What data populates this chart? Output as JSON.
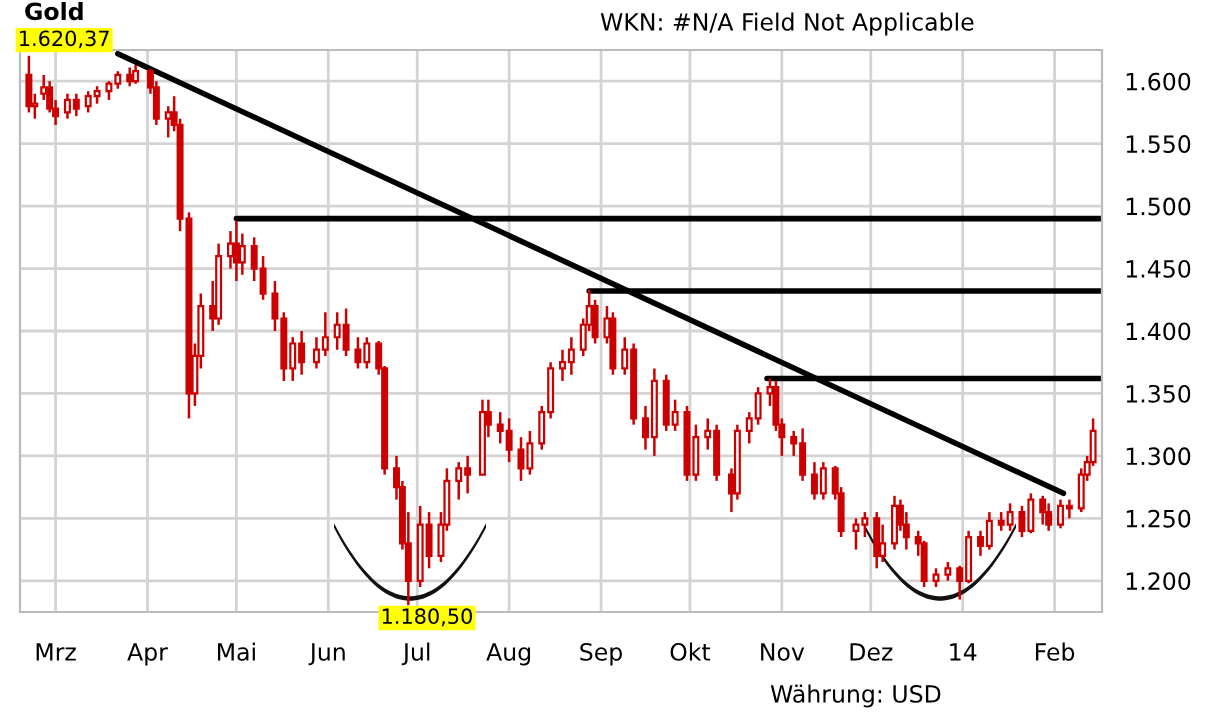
{
  "chart_data": {
    "type": "candlestick",
    "title": "Gold",
    "annotations": [
      {
        "text": "1.620,37",
        "x": "2013-02-20",
        "y": 1620.37
      },
      {
        "text": "1.180,50",
        "x": "2013-06-28",
        "y": 1180.5
      },
      "WKN: #N/A Field Not Applicable",
      "Währung: USD"
    ],
    "x": [
      "2013-02-20",
      "2013-02-22",
      "2013-02-25",
      "2013-02-27",
      "2013-03-01",
      "2013-03-05",
      "2013-03-08",
      "2013-03-12",
      "2013-03-15",
      "2013-03-19",
      "2013-03-22",
      "2013-03-26",
      "2013-03-28",
      "2013-04-02",
      "2013-04-04",
      "2013-04-08",
      "2013-04-10",
      "2013-04-12",
      "2013-04-15",
      "2013-04-17",
      "2013-04-19",
      "2013-04-23",
      "2013-04-25",
      "2013-04-29",
      "2013-05-01",
      "2013-05-03",
      "2013-05-07",
      "2013-05-10",
      "2013-05-14",
      "2013-05-17",
      "2013-05-20",
      "2013-05-23",
      "2013-05-28",
      "2013-05-31",
      "2013-06-04",
      "2013-06-07",
      "2013-06-11",
      "2013-06-14",
      "2013-06-18",
      "2013-06-20",
      "2013-06-24",
      "2013-06-26",
      "2013-06-28",
      "2013-07-02",
      "2013-07-05",
      "2013-07-09",
      "2013-07-11",
      "2013-07-15",
      "2013-07-18",
      "2013-07-23",
      "2013-07-25",
      "2013-07-29",
      "2013-08-01",
      "2013-08-05",
      "2013-08-08",
      "2013-08-12",
      "2013-08-15",
      "2013-08-19",
      "2013-08-22",
      "2013-08-26",
      "2013-08-28",
      "2013-08-30",
      "2013-09-03",
      "2013-09-05",
      "2013-09-09",
      "2013-09-12",
      "2013-09-16",
      "2013-09-19",
      "2013-09-23",
      "2013-09-26",
      "2013-09-30",
      "2013-10-03",
      "2013-10-07",
      "2013-10-10",
      "2013-10-15",
      "2013-10-17",
      "2013-10-21",
      "2013-10-24",
      "2013-10-28",
      "2013-10-30",
      "2013-11-01",
      "2013-11-05",
      "2013-11-08",
      "2013-11-12",
      "2013-11-15",
      "2013-11-19",
      "2013-11-21",
      "2013-11-26",
      "2013-11-29",
      "2013-12-03",
      "2013-12-05",
      "2013-12-09",
      "2013-12-11",
      "2013-12-13",
      "2013-12-17",
      "2013-12-19",
      "2013-12-23",
      "2013-12-27",
      "2013-12-31",
      "2014-01-03",
      "2014-01-07",
      "2014-01-10",
      "2014-01-14",
      "2014-01-17",
      "2014-01-21",
      "2014-01-24",
      "2014-01-28",
      "2014-01-30",
      "2014-02-03",
      "2014-02-06",
      "2014-02-10",
      "2014-02-12",
      "2014-02-14"
    ],
    "ohlc": [
      [
        1605,
        1620.37,
        1575,
        1580
      ],
      [
        1580,
        1590,
        1570,
        1582
      ],
      [
        1590,
        1605,
        1585,
        1595
      ],
      [
        1595,
        1600,
        1575,
        1578
      ],
      [
        1578,
        1585,
        1565,
        1572
      ],
      [
        1575,
        1590,
        1570,
        1585
      ],
      [
        1585,
        1590,
        1572,
        1578
      ],
      [
        1580,
        1592,
        1575,
        1588
      ],
      [
        1588,
        1596,
        1582,
        1592
      ],
      [
        1592,
        1600,
        1585,
        1598
      ],
      [
        1598,
        1608,
        1594,
        1605
      ],
      [
        1605,
        1611,
        1596,
        1600
      ],
      [
        1600,
        1613,
        1598,
        1608
      ],
      [
        1608,
        1610,
        1590,
        1595
      ],
      [
        1595,
        1600,
        1565,
        1570
      ],
      [
        1570,
        1580,
        1555,
        1575
      ],
      [
        1575,
        1588,
        1560,
        1565
      ],
      [
        1565,
        1570,
        1480,
        1490
      ],
      [
        1490,
        1495,
        1330,
        1350
      ],
      [
        1350,
        1390,
        1340,
        1380
      ],
      [
        1380,
        1430,
        1370,
        1420
      ],
      [
        1420,
        1440,
        1400,
        1410
      ],
      [
        1410,
        1470,
        1405,
        1460
      ],
      [
        1460,
        1480,
        1450,
        1470
      ],
      [
        1470,
        1488,
        1440,
        1455
      ],
      [
        1455,
        1478,
        1445,
        1468
      ],
      [
        1468,
        1475,
        1440,
        1450
      ],
      [
        1450,
        1460,
        1425,
        1430
      ],
      [
        1430,
        1440,
        1400,
        1410
      ],
      [
        1410,
        1415,
        1360,
        1370
      ],
      [
        1370,
        1395,
        1360,
        1390
      ],
      [
        1390,
        1400,
        1365,
        1375
      ],
      [
        1375,
        1395,
        1370,
        1385
      ],
      [
        1385,
        1415,
        1380,
        1395
      ],
      [
        1395,
        1415,
        1385,
        1405
      ],
      [
        1405,
        1418,
        1380,
        1385
      ],
      [
        1385,
        1395,
        1370,
        1375
      ],
      [
        1375,
        1395,
        1370,
        1390
      ],
      [
        1390,
        1392,
        1365,
        1370
      ],
      [
        1370,
        1372,
        1285,
        1290
      ],
      [
        1290,
        1300,
        1265,
        1275
      ],
      [
        1275,
        1280,
        1225,
        1230
      ],
      [
        1230,
        1255,
        1180.5,
        1200
      ],
      [
        1200,
        1260,
        1195,
        1245
      ],
      [
        1245,
        1255,
        1210,
        1220
      ],
      [
        1220,
        1255,
        1215,
        1245
      ],
      [
        1245,
        1290,
        1240,
        1280
      ],
      [
        1280,
        1295,
        1265,
        1290
      ],
      [
        1290,
        1300,
        1270,
        1285
      ],
      [
        1285,
        1345,
        1285,
        1335
      ],
      [
        1335,
        1345,
        1315,
        1325
      ],
      [
        1325,
        1335,
        1310,
        1320
      ],
      [
        1320,
        1330,
        1295,
        1305
      ],
      [
        1305,
        1315,
        1280,
        1290
      ],
      [
        1290,
        1320,
        1285,
        1310
      ],
      [
        1310,
        1340,
        1305,
        1335
      ],
      [
        1335,
        1375,
        1330,
        1370
      ],
      [
        1370,
        1385,
        1360,
        1375
      ],
      [
        1375,
        1395,
        1365,
        1385
      ],
      [
        1385,
        1410,
        1380,
        1405
      ],
      [
        1405,
        1433,
        1400,
        1420
      ],
      [
        1420,
        1425,
        1390,
        1395
      ],
      [
        1395,
        1420,
        1390,
        1410
      ],
      [
        1410,
        1415,
        1365,
        1370
      ],
      [
        1370,
        1395,
        1365,
        1385
      ],
      [
        1385,
        1390,
        1325,
        1330
      ],
      [
        1330,
        1340,
        1305,
        1315
      ],
      [
        1315,
        1370,
        1300,
        1360
      ],
      [
        1360,
        1365,
        1320,
        1325
      ],
      [
        1325,
        1345,
        1320,
        1335
      ],
      [
        1335,
        1340,
        1280,
        1285
      ],
      [
        1285,
        1325,
        1280,
        1315
      ],
      [
        1315,
        1330,
        1305,
        1320
      ],
      [
        1320,
        1325,
        1280,
        1285
      ],
      [
        1285,
        1290,
        1255,
        1270
      ],
      [
        1270,
        1325,
        1265,
        1320
      ],
      [
        1320,
        1335,
        1310,
        1330
      ],
      [
        1330,
        1355,
        1325,
        1350
      ],
      [
        1350,
        1362,
        1340,
        1355
      ],
      [
        1355,
        1360,
        1320,
        1325
      ],
      [
        1325,
        1330,
        1300,
        1315
      ],
      [
        1315,
        1320,
        1300,
        1310
      ],
      [
        1310,
        1322,
        1280,
        1285
      ],
      [
        1285,
        1295,
        1265,
        1270
      ],
      [
        1270,
        1295,
        1265,
        1290
      ],
      [
        1290,
        1292,
        1265,
        1270
      ],
      [
        1270,
        1275,
        1235,
        1240
      ],
      [
        1240,
        1250,
        1225,
        1245
      ],
      [
        1245,
        1255,
        1235,
        1250
      ],
      [
        1250,
        1255,
        1210,
        1220
      ],
      [
        1220,
        1245,
        1215,
        1230
      ],
      [
        1230,
        1268,
        1225,
        1260
      ],
      [
        1260,
        1265,
        1240,
        1245
      ],
      [
        1245,
        1255,
        1225,
        1235
      ],
      [
        1235,
        1240,
        1220,
        1230
      ],
      [
        1230,
        1232,
        1195,
        1200
      ],
      [
        1200,
        1210,
        1195,
        1205
      ],
      [
        1205,
        1215,
        1200,
        1210
      ],
      [
        1210,
        1212,
        1185,
        1200
      ],
      [
        1200,
        1240,
        1198,
        1235
      ],
      [
        1235,
        1240,
        1220,
        1228
      ],
      [
        1228,
        1255,
        1225,
        1248
      ],
      [
        1248,
        1255,
        1240,
        1245
      ],
      [
        1245,
        1262,
        1240,
        1255
      ],
      [
        1255,
        1260,
        1235,
        1240
      ],
      [
        1240,
        1270,
        1238,
        1265
      ],
      [
        1265,
        1268,
        1245,
        1255
      ],
      [
        1255,
        1262,
        1240,
        1245
      ],
      [
        1245,
        1265,
        1242,
        1260
      ],
      [
        1260,
        1265,
        1250,
        1258
      ],
      [
        1258,
        1290,
        1255,
        1285
      ],
      [
        1285,
        1300,
        1280,
        1295
      ],
      [
        1295,
        1330,
        1292,
        1320
      ]
    ],
    "color": "#cc0000",
    "series": [
      {
        "type": "line",
        "color": "#000000",
        "x": [
          "2013-03-22",
          "2014-02-04"
        ],
        "values": [
          1622,
          1270
        ]
      },
      {
        "type": "line",
        "color": "#000000",
        "x": [
          "2013-05-01",
          "2014-02-17"
        ],
        "values": [
          1490,
          1490
        ]
      },
      {
        "type": "line",
        "color": "#000000",
        "x": [
          "2013-08-28",
          "2014-02-17"
        ],
        "values": [
          1432,
          1432
        ]
      },
      {
        "type": "line",
        "color": "#000000",
        "x": [
          "2013-10-27",
          "2014-02-17"
        ],
        "values": [
          1362,
          1362
        ]
      }
    ],
    "xlim": [
      "2013-02-17",
      "2014-02-17"
    ],
    "xticks": [
      {
        "value": "2013-03-01",
        "label": "Mrz"
      },
      {
        "value": "2013-04-01",
        "label": "Apr"
      },
      {
        "value": "2013-05-01",
        "label": "Mai"
      },
      {
        "value": "2013-06-01",
        "label": "Jun"
      },
      {
        "value": "2013-07-01",
        "label": "Jul"
      },
      {
        "value": "2013-08-01",
        "label": "Aug"
      },
      {
        "value": "2013-09-01",
        "label": "Sep"
      },
      {
        "value": "2013-10-01",
        "label": "Okt"
      },
      {
        "value": "2013-11-01",
        "label": "Nov"
      },
      {
        "value": "2013-12-01",
        "label": "Dez"
      },
      {
        "value": "2014-01-01",
        "label": "14"
      },
      {
        "value": "2014-02-01",
        "label": "Feb"
      }
    ],
    "ylim": [
      1175,
      1625
    ],
    "yticks": [
      {
        "value": 1200,
        "label": "1.200"
      },
      {
        "value": 1250,
        "label": "1.250"
      },
      {
        "value": 1300,
        "label": "1.300"
      },
      {
        "value": 1350,
        "label": "1.350"
      },
      {
        "value": 1400,
        "label": "1.400"
      },
      {
        "value": 1450,
        "label": "1.450"
      },
      {
        "value": 1500,
        "label": "1.500"
      },
      {
        "value": 1550,
        "label": "1.550"
      },
      {
        "value": 1600,
        "label": "1.600"
      }
    ],
    "grid": true
  }
}
